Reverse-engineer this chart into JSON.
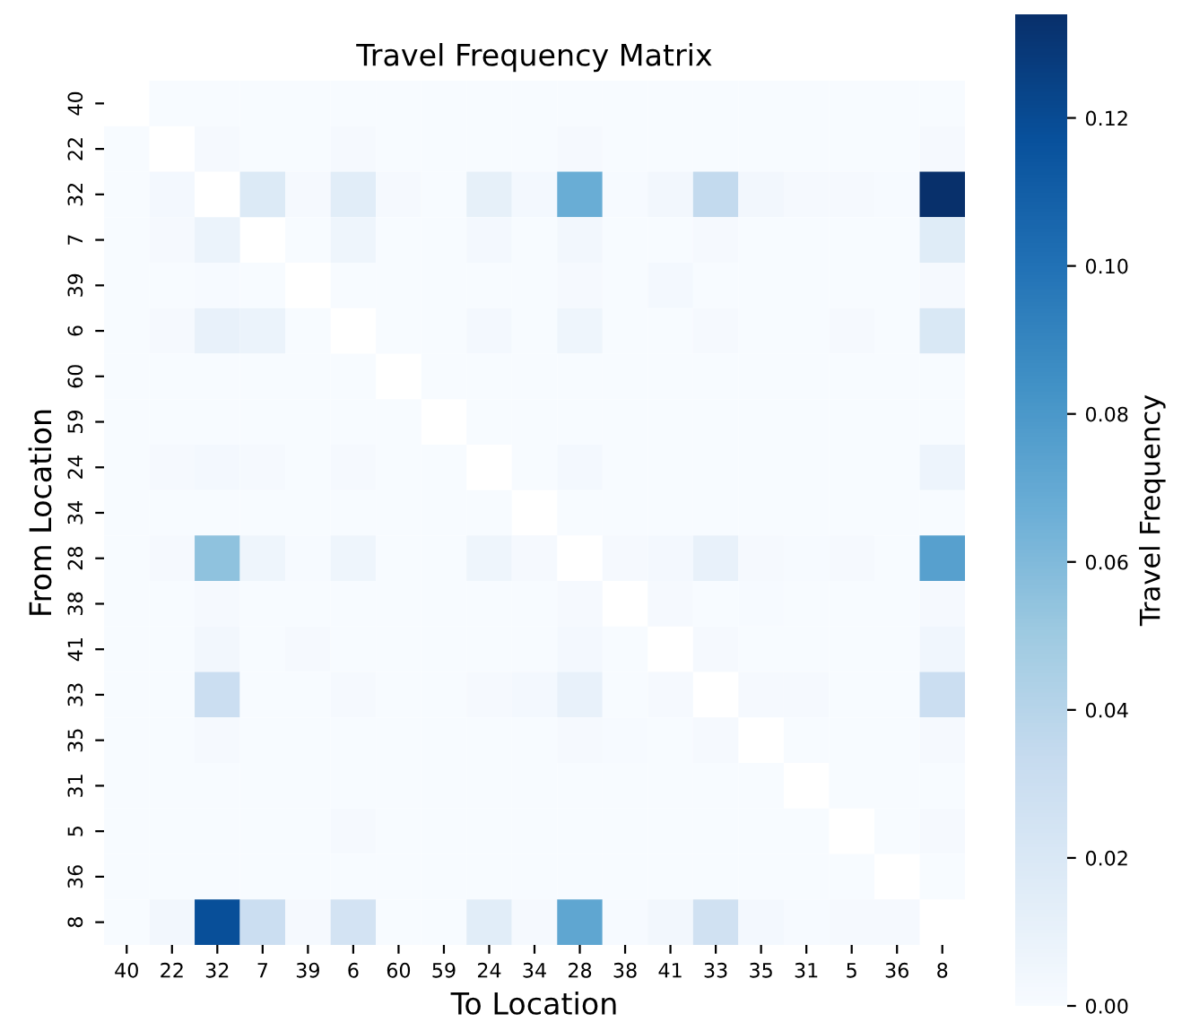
{
  "chart_data": {
    "type": "heatmap",
    "title": "Travel Frequency Matrix",
    "xlabel": "To Location",
    "ylabel": "From Location",
    "clabel": "Travel Frequency",
    "categories": [
      "40",
      "22",
      "32",
      "7",
      "39",
      "6",
      "60",
      "59",
      "24",
      "34",
      "28",
      "38",
      "41",
      "33",
      "35",
      "31",
      "5",
      "36",
      "8"
    ],
    "y_categories": [
      "40",
      "22",
      "32",
      "7",
      "39",
      "6",
      "60",
      "59",
      "24",
      "34",
      "28",
      "38",
      "41",
      "33",
      "35",
      "31",
      "5",
      "36",
      "8"
    ],
    "cells": [
      [
        null,
        0,
        0,
        0,
        0,
        0,
        0,
        0,
        0,
        0,
        0,
        0,
        0,
        0,
        0,
        0,
        0,
        0,
        0
      ],
      [
        0,
        null,
        0.002,
        0,
        0,
        0.002,
        0,
        0,
        0,
        0,
        0.002,
        0,
        0,
        0,
        0,
        0,
        0,
        0,
        0.002
      ],
      [
        0,
        0.003,
        null,
        0.018,
        0.002,
        0.015,
        0.002,
        0,
        0.012,
        0.003,
        0.068,
        0.001,
        0.004,
        0.035,
        0.004,
        0.002,
        0.002,
        0.001,
        0.134
      ],
      [
        0,
        0.002,
        0.008,
        null,
        0,
        0.006,
        0,
        0,
        0.003,
        0,
        0.004,
        0,
        0,
        0.002,
        0,
        0,
        0,
        0,
        0.016
      ],
      [
        0,
        0,
        0.001,
        0,
        null,
        0,
        0,
        0,
        0,
        0,
        0.002,
        0,
        0.003,
        0,
        0,
        0,
        0,
        0,
        0.002
      ],
      [
        0,
        0.002,
        0.01,
        0.008,
        0,
        null,
        0,
        0,
        0.003,
        0,
        0.006,
        0,
        0,
        0.002,
        0,
        0,
        0.002,
        0,
        0.02
      ],
      [
        0,
        0,
        0,
        0,
        0,
        0,
        null,
        0,
        0,
        0,
        0,
        0,
        0,
        0,
        0,
        0,
        0,
        0,
        0
      ],
      [
        0,
        0,
        0,
        0,
        0,
        0,
        0,
        null,
        0,
        0,
        0,
        0,
        0,
        0,
        0,
        0,
        0,
        0,
        0
      ],
      [
        0,
        0.002,
        0.003,
        0.002,
        0,
        0.002,
        0,
        0,
        null,
        0,
        0.003,
        0,
        0,
        0,
        0,
        0,
        0,
        0,
        0.007
      ],
      [
        0,
        0,
        0,
        0,
        0,
        0,
        0,
        0,
        0,
        null,
        0,
        0,
        0,
        0,
        0,
        0,
        0,
        0,
        0
      ],
      [
        0,
        0.002,
        0.055,
        0.006,
        0.001,
        0.006,
        0,
        0,
        0.006,
        0.002,
        null,
        0.002,
        0.003,
        0.01,
        0.002,
        0.001,
        0.002,
        0,
        0.075
      ],
      [
        0,
        0,
        0.002,
        0,
        0,
        0,
        0,
        0,
        0,
        0,
        0.002,
        null,
        0.002,
        0,
        0.001,
        0,
        0,
        0,
        0.002
      ],
      [
        0,
        0,
        0.004,
        0,
        0.002,
        0,
        0,
        0,
        0,
        0,
        0.003,
        0,
        null,
        0.002,
        0,
        0,
        0,
        0,
        0.005
      ],
      [
        0,
        0,
        0.03,
        0,
        0,
        0.002,
        0,
        0,
        0.002,
        0.003,
        0.01,
        0,
        0.002,
        null,
        0.002,
        0.002,
        0,
        0,
        0.03
      ],
      [
        0,
        0,
        0.002,
        0,
        0,
        0,
        0,
        0,
        0,
        0,
        0.002,
        0.001,
        0,
        0.002,
        null,
        0,
        0,
        0,
        0.002
      ],
      [
        0,
        0,
        0,
        0,
        0,
        0,
        0,
        0,
        0,
        0,
        0,
        0,
        0,
        0,
        0,
        null,
        0,
        0,
        0
      ],
      [
        0,
        0,
        0,
        0,
        0,
        0.002,
        0,
        0,
        0,
        0,
        0,
        0,
        0,
        0,
        0,
        0,
        null,
        0,
        0.002
      ],
      [
        0,
        0,
        0,
        0,
        0,
        0,
        0,
        0,
        0,
        0,
        0,
        0,
        0,
        0,
        0,
        0,
        0,
        null,
        0
      ],
      [
        0,
        0.004,
        0.118,
        0.03,
        0.002,
        0.025,
        0,
        0,
        0.015,
        0.002,
        0.072,
        0.001,
        0.004,
        0.027,
        0.003,
        0.001,
        0.002,
        0.002,
        null
      ]
    ],
    "clim": [
      0,
      0.134
    ],
    "cticks": [
      {
        "value": 0,
        "label": "0.00"
      },
      {
        "value": 0.02,
        "label": "0.02"
      },
      {
        "value": 0.04,
        "label": "0.04"
      },
      {
        "value": 0.06,
        "label": "0.06"
      },
      {
        "value": 0.08,
        "label": "0.08"
      },
      {
        "value": 0.1,
        "label": "0.10"
      },
      {
        "value": 0.12,
        "label": "0.12"
      }
    ]
  }
}
